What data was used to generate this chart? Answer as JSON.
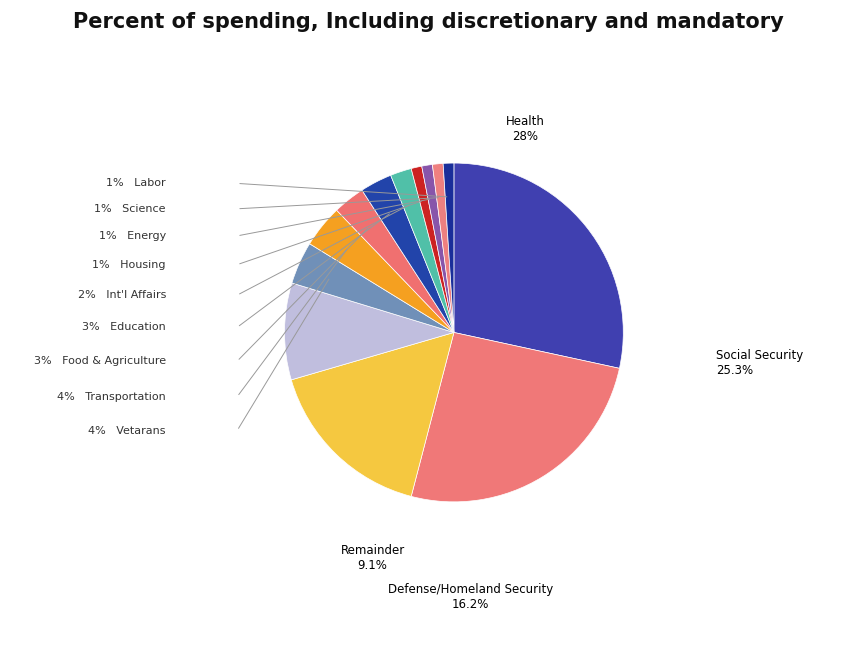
{
  "title": "Percent of spending, Including discretionary and mandatory",
  "slices": [
    {
      "label": "Health",
      "pct_label": "28%",
      "value": 28.0,
      "color": "#4040B0"
    },
    {
      "label": "Social Security",
      "pct_label": "25.3%",
      "value": 25.3,
      "color": "#F07878"
    },
    {
      "label": "Defense/Homeland Security",
      "pct_label": "16.2%",
      "value": 16.2,
      "color": "#F5C840"
    },
    {
      "label": "Remainder",
      "pct_label": "9.1%",
      "value": 9.1,
      "color": "#C0BEDE"
    },
    {
      "label": "Vetarans",
      "pct_label": "4%",
      "value": 4.0,
      "color": "#7090B8"
    },
    {
      "label": "Transportation",
      "pct_label": "4%",
      "value": 4.0,
      "color": "#F5A020"
    },
    {
      "label": "Food & Agriculture",
      "pct_label": "3%",
      "value": 3.0,
      "color": "#F07070"
    },
    {
      "label": "Education",
      "pct_label": "3%",
      "value": 3.0,
      "color": "#2244AA"
    },
    {
      "label": "Int'l Affairs",
      "pct_label": "2%",
      "value": 2.0,
      "color": "#50C0A8"
    },
    {
      "label": "Housing",
      "pct_label": "1%",
      "value": 1.0,
      "color": "#CC2222"
    },
    {
      "label": "Energy",
      "pct_label": "1%",
      "value": 1.0,
      "color": "#8855AA"
    },
    {
      "label": "Science",
      "pct_label": "1%",
      "value": 1.0,
      "color": "#EE8080"
    },
    {
      "label": "Labor",
      "pct_label": "1%",
      "value": 1.0,
      "color": "#1A2E9A"
    }
  ],
  "background_color": "#FFFFFF",
  "title_fontsize": 15,
  "label_fontsize": 8.5,
  "small_label_fontsize": 8.0
}
